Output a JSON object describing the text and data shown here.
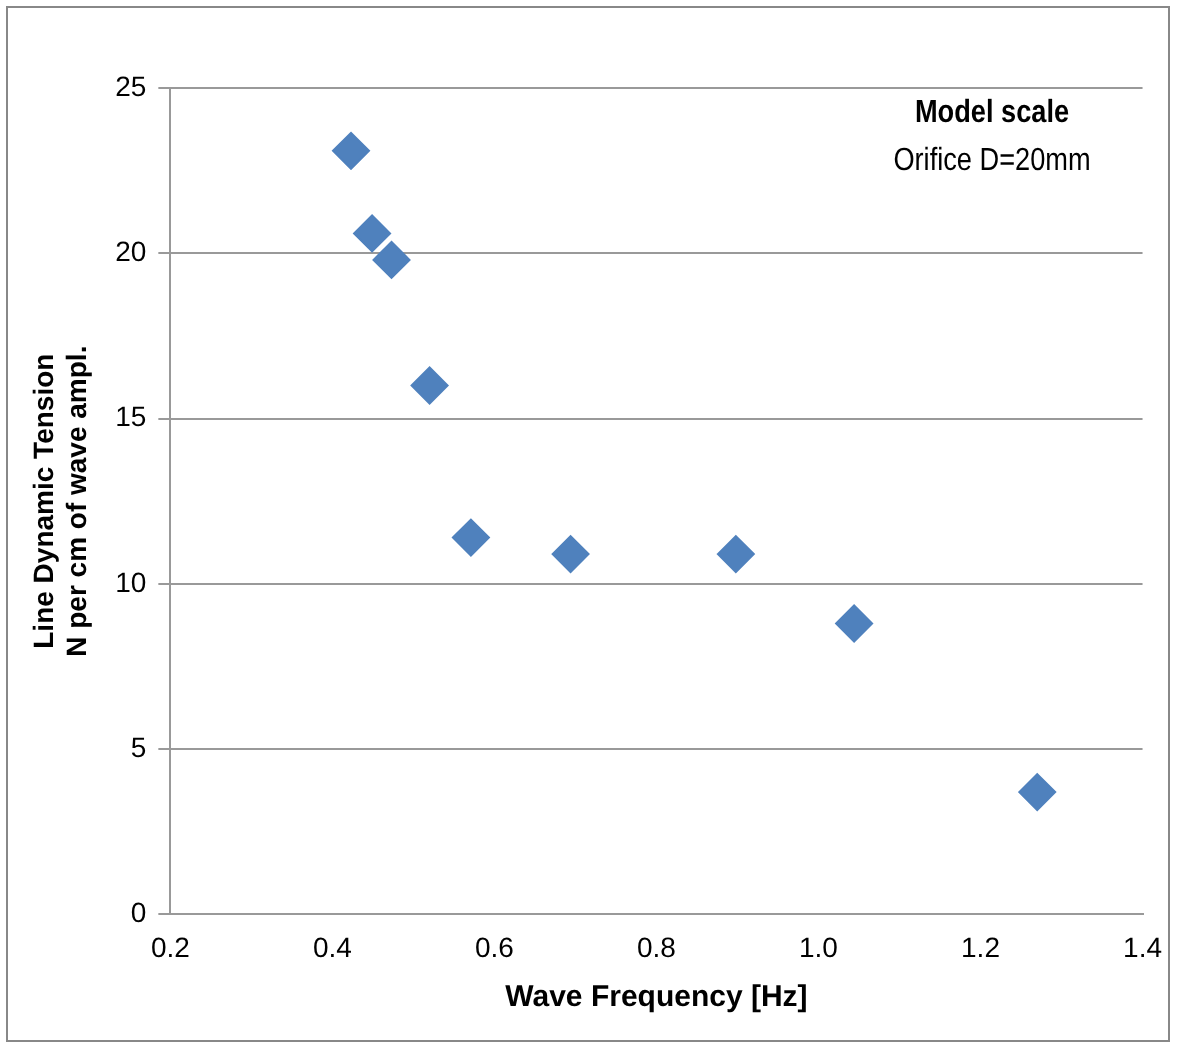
{
  "chart_data": {
    "type": "scatter",
    "xlabel": "Wave Frequency [Hz]",
    "ylabel": "Line Dynamic Tension\nN per cm of wave ampl.",
    "annotations": [
      "Model scale",
      "Orifice D=20mm"
    ],
    "x": [
      0.423,
      0.449,
      0.473,
      0.52,
      0.571,
      0.694,
      0.898,
      1.044,
      1.27
    ],
    "series": [
      {
        "color": "#4f81bd",
        "values": [
          23.1,
          20.6,
          19.8,
          16.0,
          11.4,
          10.9,
          10.9,
          8.8,
          3.7
        ]
      }
    ],
    "xlim": [
      0.2,
      1.4
    ],
    "xticks": [
      {
        "value": 0.2,
        "label": "0.2"
      },
      {
        "value": 0.4,
        "label": "0.4"
      },
      {
        "value": 0.6,
        "label": "0.6"
      },
      {
        "value": 0.8,
        "label": "0.8"
      },
      {
        "value": 1.0,
        "label": "1.0"
      },
      {
        "value": 1.2,
        "label": "1.2"
      },
      {
        "value": 1.4,
        "label": "1.4"
      }
    ],
    "ylim": [
      0,
      25
    ],
    "yticks": [
      0,
      5,
      10,
      15,
      20,
      25
    ],
    "grid": "y",
    "legend": false,
    "marker": "diamond"
  }
}
